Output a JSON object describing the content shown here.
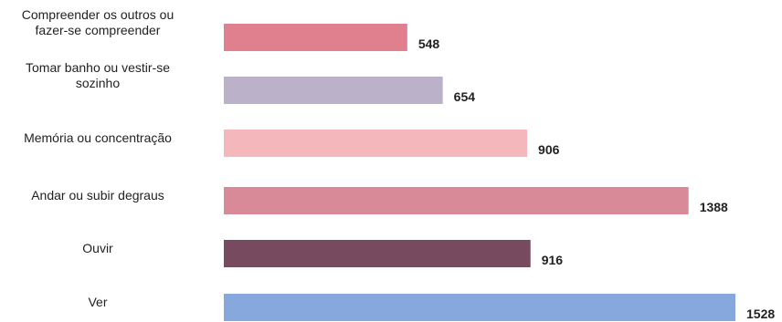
{
  "chart_data": {
    "type": "bar",
    "orientation": "horizontal",
    "title": "",
    "xlabel": "",
    "ylabel": "",
    "grid": false,
    "legend": "none",
    "categories": [
      "Compreender os outros ou fazer-se compreender",
      "Tomar banho ou vestir-se sozinho",
      "Memória ou concentração",
      "Andar ou subir degraus",
      "Ouvir",
      "Ver"
    ],
    "category_lines": [
      [
        "Compreender os outros ou",
        "fazer-se compreender"
      ],
      [
        "Tomar banho ou vestir-se",
        "sozinho"
      ],
      [
        "Memória ou concentração"
      ],
      [
        "Andar ou subir degraus"
      ],
      [
        "Ouvir"
      ],
      [
        "Ver"
      ]
    ],
    "values": [
      548,
      654,
      906,
      1388,
      916,
      1528
    ],
    "value_labels": [
      "548",
      "654",
      "906",
      "1388",
      "916",
      "1528"
    ],
    "colors": [
      "#e0808f",
      "#bbb2c9",
      "#f4b7bb",
      "#d88a98",
      "#784a60",
      "#86a8dc"
    ]
  }
}
